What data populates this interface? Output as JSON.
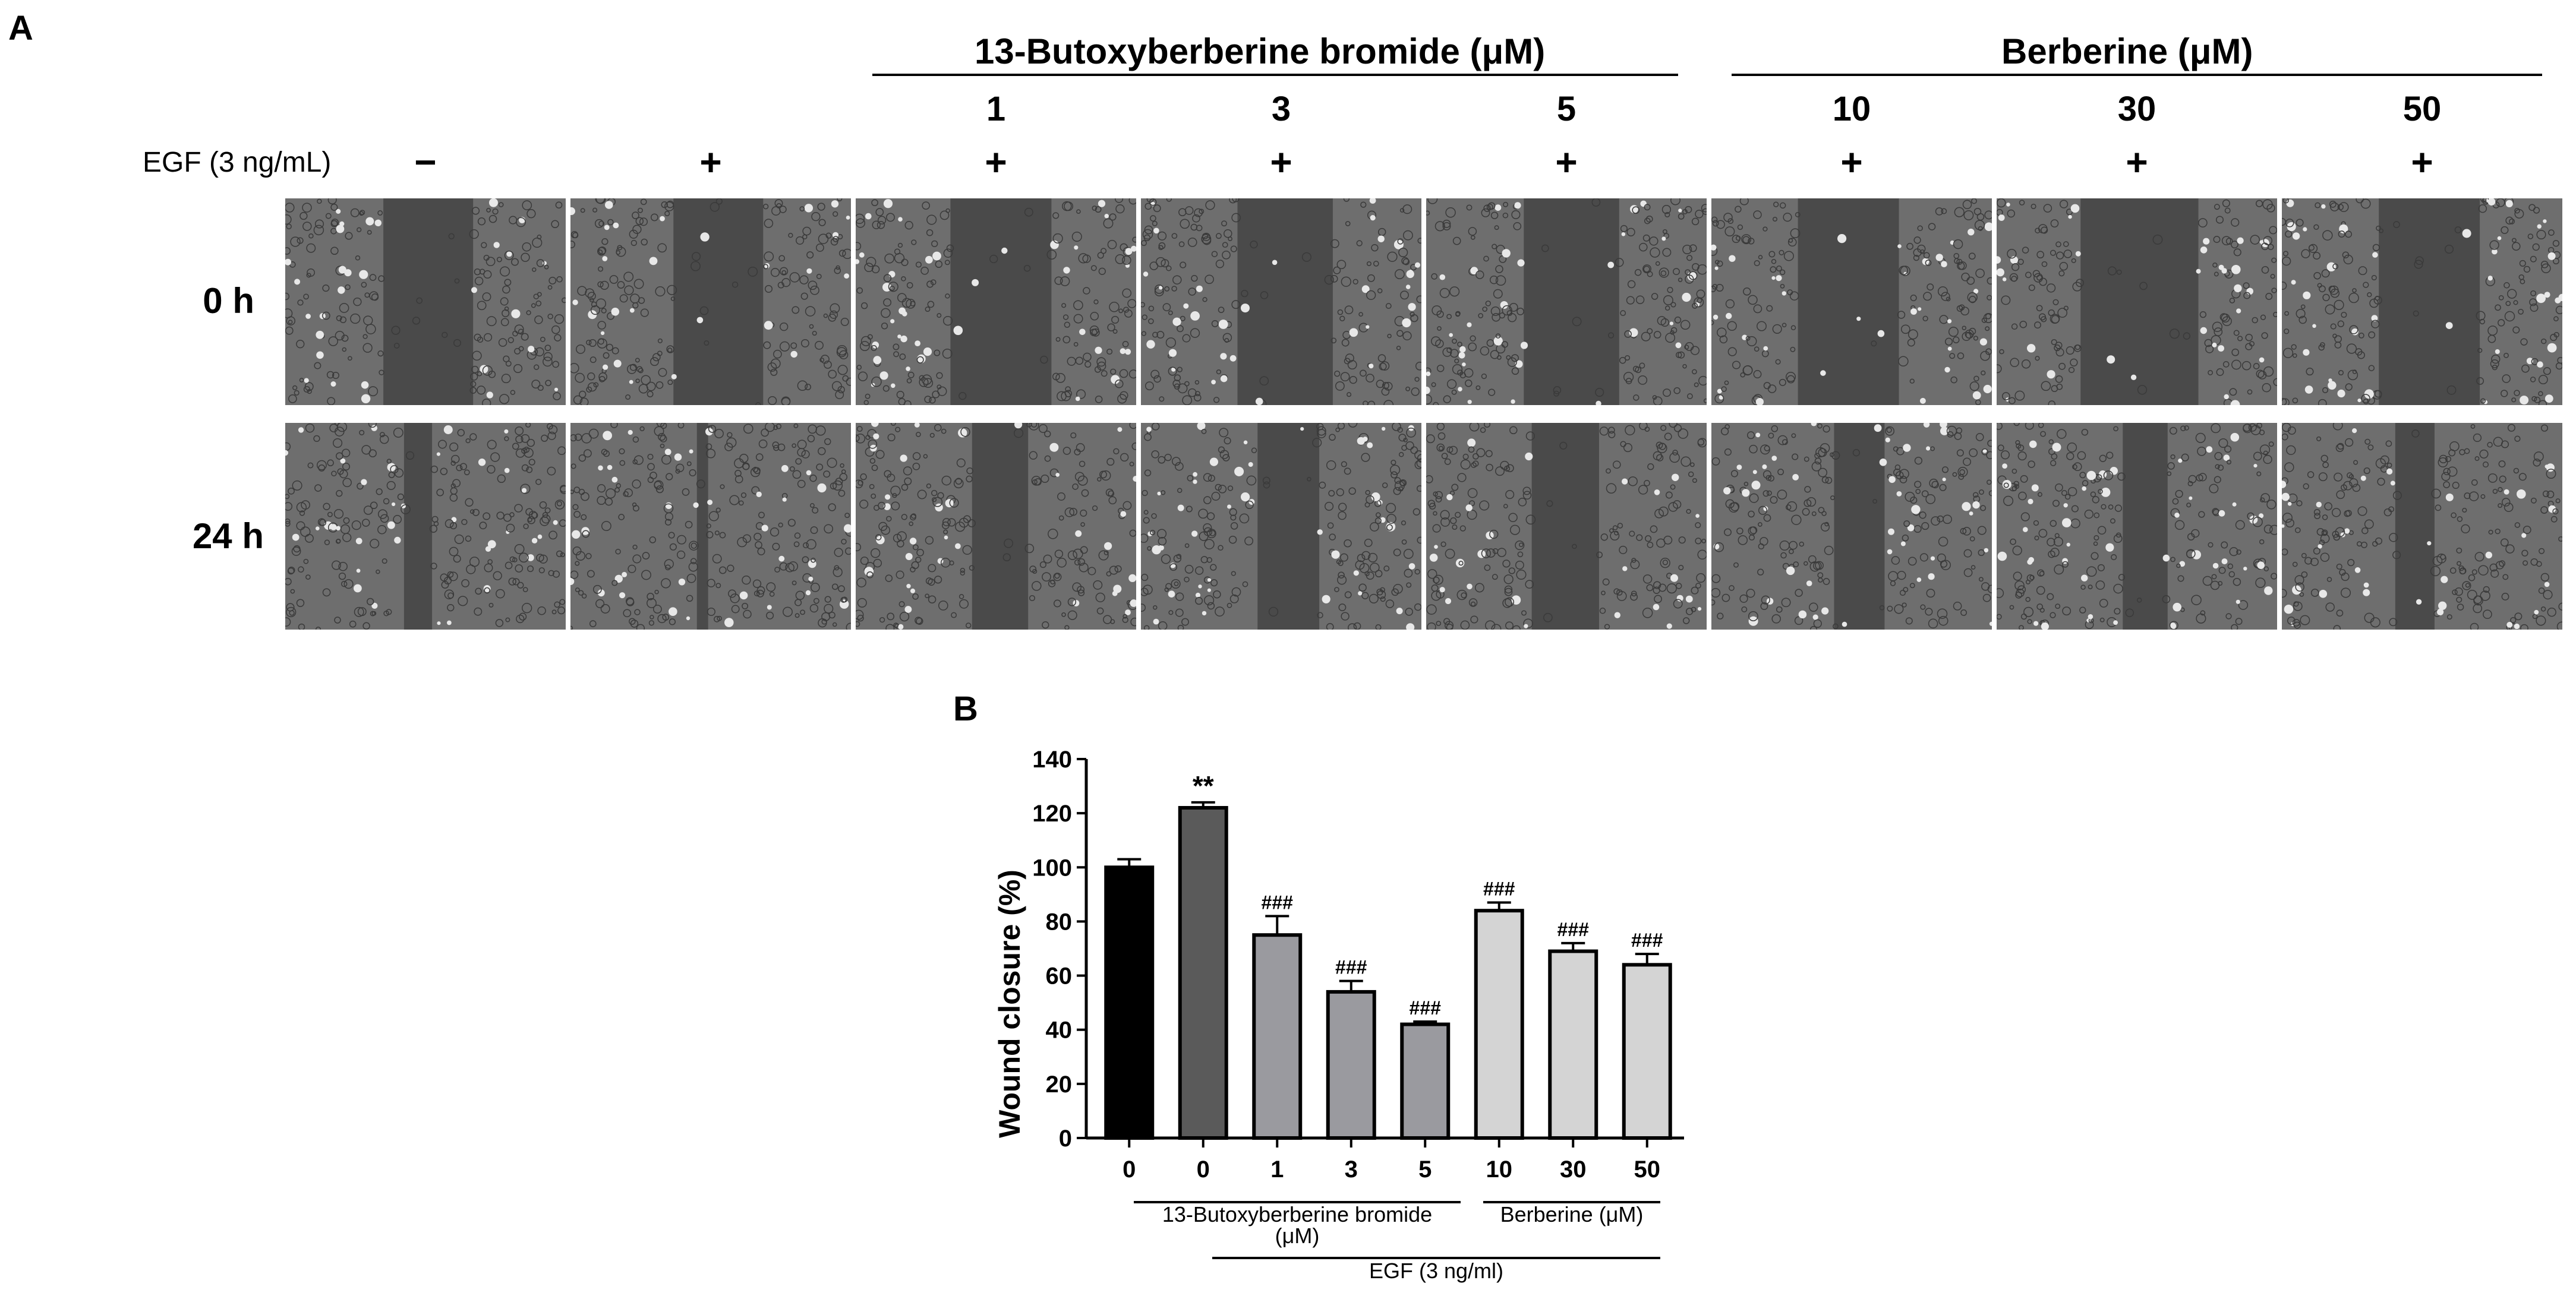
{
  "panel_a": {
    "label": "A",
    "group1_title": "13-Butoxyberberine bromide (μM)",
    "group2_title": "Berberine (μM)",
    "egf_label": "EGF (3 ng/mL)",
    "columns": [
      {
        "conc": "",
        "egf": "−"
      },
      {
        "conc": "",
        "egf": "+"
      },
      {
        "conc": "1",
        "egf": "+"
      },
      {
        "conc": "3",
        "egf": "+"
      },
      {
        "conc": "5",
        "egf": "+"
      },
      {
        "conc": "10",
        "egf": "+"
      },
      {
        "conc": "30",
        "egf": "+"
      },
      {
        "conc": "50",
        "egf": "+"
      }
    ],
    "rows": [
      {
        "label": "0 h",
        "gap_fraction": [
          0.32,
          0.32,
          0.36,
          0.34,
          0.34,
          0.36,
          0.42,
          0.36
        ]
      },
      {
        "label": "24 h",
        "gap_fraction": [
          0.1,
          0.04,
          0.2,
          0.22,
          0.24,
          0.18,
          0.16,
          0.14
        ]
      }
    ]
  },
  "panel_b": {
    "label": "B",
    "group1_label": "13-Butoxyberberine bromide",
    "group1_unit": "(μM)",
    "group2_label": "Berberine (μM)",
    "egf_label": "EGF (3 ng/ml)"
  },
  "chart_data": {
    "type": "bar",
    "categories": [
      "0",
      "0",
      "1",
      "3",
      "5",
      "10",
      "30",
      "50"
    ],
    "values": [
      100,
      122,
      75,
      54,
      42,
      84,
      69,
      64
    ],
    "errors": [
      3,
      2,
      7,
      4,
      1,
      3,
      3,
      4
    ],
    "annotations": [
      "",
      "**",
      "###",
      "###",
      "###",
      "###",
      "###",
      "###"
    ],
    "bar_colors": [
      "#000000",
      "#5a5a5a",
      "#9a9a9f",
      "#9a9a9f",
      "#9a9a9f",
      "#d4d4d4",
      "#d4d4d4",
      "#d4d4d4"
    ],
    "ylabel": "Wound closure (%)",
    "xlabel": "",
    "ylim": [
      0,
      140
    ],
    "yticks": [
      0,
      20,
      40,
      60,
      80,
      100,
      120,
      140
    ],
    "grid": false
  }
}
